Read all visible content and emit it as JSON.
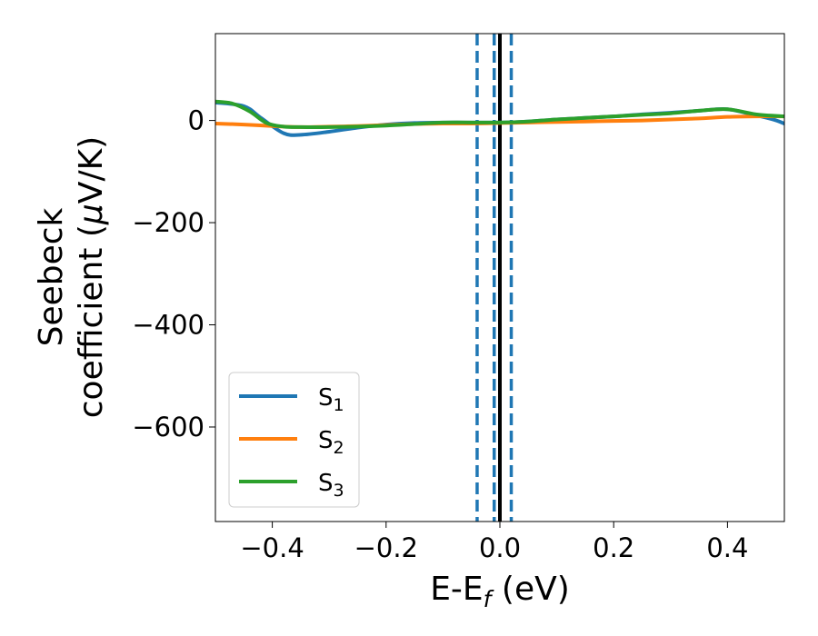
{
  "chart_data": {
    "type": "line",
    "xlabel": {
      "main": "E-E",
      "sub": "f",
      "unit": " (eV)"
    },
    "ylabel": {
      "line1": "Seebeck",
      "line2": "coefficient  (",
      "mu": "μ",
      "line2_end": "V/K)"
    },
    "xlim": [
      -0.5,
      0.5
    ],
    "ylim": [
      -785,
      170
    ],
    "x_ticks": [
      -0.4,
      -0.2,
      0.0,
      0.2,
      0.4
    ],
    "x_tick_labels": [
      "−0.4",
      "−0.2",
      "0.0",
      "0.2",
      "0.4"
    ],
    "y_ticks": [
      0,
      -200,
      -400,
      -600
    ],
    "y_tick_labels": [
      "0",
      "−200",
      "−400",
      "−600"
    ],
    "grid": false,
    "legend_position": "lower-left",
    "vlines": [
      {
        "x": -0.04,
        "style": "dashed",
        "color": "#1f77b4"
      },
      {
        "x": -0.01,
        "style": "dashed",
        "color": "#1f77b4"
      },
      {
        "x": 0.02,
        "style": "dashed",
        "color": "#1f77b4"
      },
      {
        "x": 0.0,
        "style": "solid",
        "color": "#000000"
      }
    ],
    "series": [
      {
        "name": "S",
        "sub": "1",
        "color": "#1f77b4",
        "x": [
          -0.5,
          -0.45,
          -0.42,
          -0.38,
          -0.35,
          -0.3,
          -0.25,
          -0.2,
          -0.15,
          -0.1,
          -0.05,
          0.0,
          0.05,
          0.1,
          0.15,
          0.2,
          0.25,
          0.3,
          0.35,
          0.4,
          0.45,
          0.48,
          0.5
        ],
        "y": [
          35,
          28,
          5,
          -25,
          -28,
          -22,
          -14,
          -8,
          -5,
          -4,
          -4,
          -4,
          -2,
          2,
          5,
          8,
          12,
          15,
          19,
          22,
          10,
          2,
          -6
        ]
      },
      {
        "name": "S",
        "sub": "2",
        "color": "#ff7f0e",
        "x": [
          -0.5,
          -0.45,
          -0.4,
          -0.35,
          -0.3,
          -0.25,
          -0.2,
          -0.15,
          -0.1,
          -0.05,
          0.0,
          0.05,
          0.1,
          0.15,
          0.2,
          0.25,
          0.3,
          0.35,
          0.4,
          0.45,
          0.5
        ],
        "y": [
          -6,
          -8,
          -11,
          -13,
          -12,
          -11,
          -9,
          -7,
          -6,
          -6,
          -5,
          -4,
          -3,
          -2,
          -1,
          0,
          2,
          4,
          7,
          8,
          8
        ]
      },
      {
        "name": "S",
        "sub": "3",
        "color": "#2ca02c",
        "x": [
          -0.5,
          -0.47,
          -0.44,
          -0.41,
          -0.38,
          -0.35,
          -0.3,
          -0.25,
          -0.2,
          -0.15,
          -0.1,
          -0.05,
          0.0,
          0.05,
          0.1,
          0.15,
          0.2,
          0.25,
          0.3,
          0.35,
          0.4,
          0.45,
          0.5
        ],
        "y": [
          37,
          33,
          18,
          -5,
          -12,
          -13,
          -13,
          -12,
          -10,
          -7,
          -4,
          -4,
          -4,
          -2,
          2,
          5,
          8,
          11,
          14,
          19,
          22,
          12,
          8
        ]
      }
    ]
  }
}
